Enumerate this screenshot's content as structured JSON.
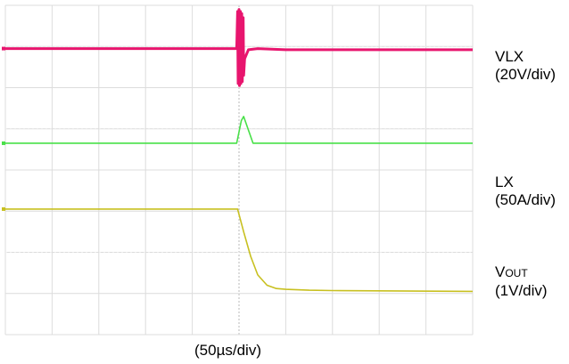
{
  "chart_data": {
    "type": "line",
    "grid": true,
    "grid_divisions": {
      "x": 10,
      "y": 8
    },
    "xlabel": "(50µs/div)",
    "x_unit": "div",
    "y_unit": "div",
    "xlim": [
      0,
      10
    ],
    "ylim": [
      0,
      8
    ],
    "series": [
      {
        "name": "VLX",
        "scale": "(20V/div)",
        "color": "#e8156e",
        "x": [
          0,
          4.95,
          4.97,
          4.98,
          5.0,
          5.01,
          5.03,
          5.04,
          5.06,
          5.07,
          5.09,
          5.1,
          5.12,
          5.2,
          5.4,
          6,
          10
        ],
        "y": [
          6.95,
          6.95,
          7.85,
          6.1,
          7.9,
          6.05,
          7.85,
          6.1,
          7.8,
          6.15,
          7.7,
          6.3,
          6.7,
          6.92,
          6.95,
          6.92,
          6.92
        ]
      },
      {
        "name": "LX",
        "scale": "(50A/div)",
        "color": "#48e048",
        "x": [
          0,
          4.95,
          5.05,
          5.1,
          5.3,
          10
        ],
        "y": [
          4.65,
          4.65,
          5.2,
          5.3,
          4.65,
          4.65
        ]
      },
      {
        "name": "VOUT",
        "name_main": "V",
        "name_sub": "OUT",
        "scale": "(1V/div)",
        "color": "#c8c020",
        "x": [
          0,
          4.97,
          5.1,
          5.25,
          5.4,
          5.6,
          5.8,
          6.0,
          6.5,
          7,
          10
        ],
        "y": [
          3.05,
          3.05,
          2.5,
          1.9,
          1.45,
          1.2,
          1.12,
          1.1,
          1.08,
          1.07,
          1.05
        ]
      }
    ]
  }
}
